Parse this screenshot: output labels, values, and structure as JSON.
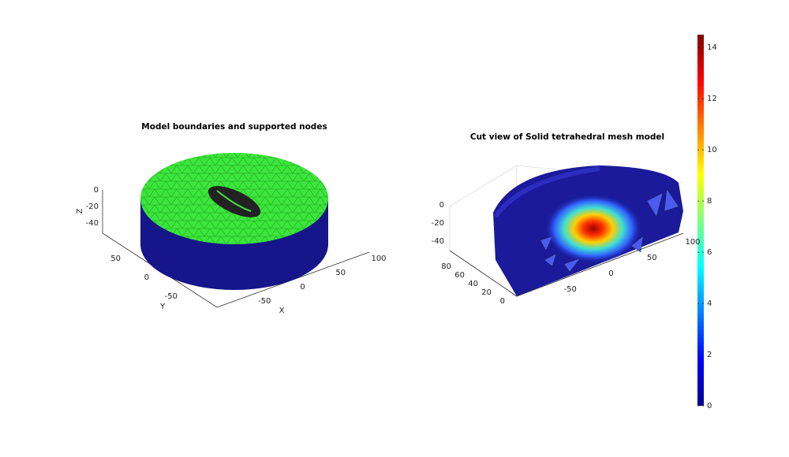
{
  "left_plot": {
    "title": "Model boundaries and supported nodes",
    "xlabel": "X",
    "ylabel": "Y",
    "zlabel": "Z",
    "xlim": [
      -100,
      100
    ],
    "xticks": [
      -50,
      0,
      50,
      100
    ],
    "ylim": [
      -100,
      100
    ],
    "yticks": [
      -50,
      0,
      50
    ],
    "zlim": [
      -50,
      0
    ],
    "zticks": [
      0,
      -20,
      -40
    ]
  },
  "right_plot": {
    "title": "Cut view of Solid tetrahedral mesh model",
    "xlim": [
      -100,
      100
    ],
    "xticks": [
      -50,
      0,
      50,
      100
    ],
    "ylim": [
      0,
      100
    ],
    "yticks": [
      0,
      20,
      40,
      60,
      80
    ],
    "zlim": [
      -50,
      0
    ],
    "zticks": [
      0,
      -20,
      -40
    ]
  },
  "colorbar": {
    "clim": [
      0,
      14.5
    ],
    "ticks": [
      0,
      2,
      4,
      6,
      8,
      10,
      12,
      14
    ]
  }
}
